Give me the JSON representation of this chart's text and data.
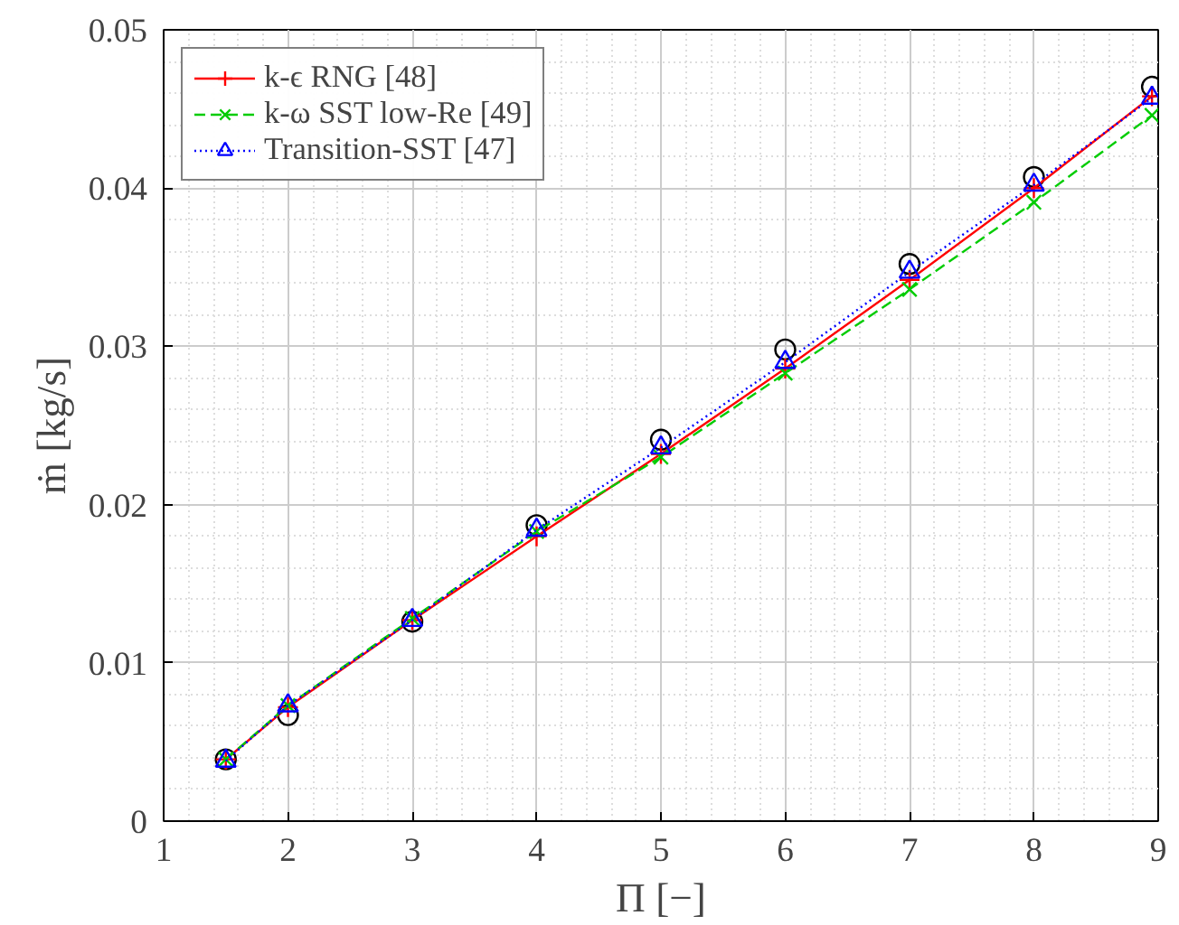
{
  "chart_data": {
    "type": "line",
    "xlabel": "Π [−]",
    "ylabel": "ṁ [kg/s]",
    "x": [
      1.5,
      2,
      3,
      4,
      5,
      6,
      7,
      8,
      8.95
    ],
    "xlim": [
      1,
      9
    ],
    "xticks": [
      1,
      2,
      3,
      4,
      5,
      6,
      7,
      8,
      9
    ],
    "ylim": [
      0,
      0.05
    ],
    "yticks": [
      0,
      0.01,
      0.02,
      0.03,
      0.04,
      0.05
    ],
    "grid": true,
    "legend": "top left",
    "series": [
      {
        "type": "scatter",
        "color": "#000000",
        "marker": "circle",
        "values": [
          0.0039,
          0.0067,
          0.0126,
          0.0187,
          0.0241,
          0.0298,
          0.0352,
          0.0407,
          0.0464
        ]
      },
      {
        "name": "k-ϵ RNG [48]",
        "color": "#ff0000",
        "marker": "cross",
        "line_style": "solid",
        "values": [
          0.0039,
          0.0072,
          0.0127,
          0.018,
          0.0232,
          0.0286,
          0.0342,
          0.04,
          0.0458
        ]
      },
      {
        "name": "k-ω SST low-Re [49]",
        "color": "#00cc00",
        "marker": "x",
        "line_style": "dashed",
        "values": [
          0.0039,
          0.0073,
          0.0128,
          0.0183,
          0.023,
          0.0283,
          0.0336,
          0.0391,
          0.0446
        ]
      },
      {
        "name": "Transition-SST [47]",
        "color": "#0000ff",
        "marker": "triangle",
        "line_style": "dotted",
        "values": [
          0.0038,
          0.0073,
          0.0127,
          0.0184,
          0.0236,
          0.029,
          0.0347,
          0.0402,
          0.0457
        ]
      }
    ]
  }
}
